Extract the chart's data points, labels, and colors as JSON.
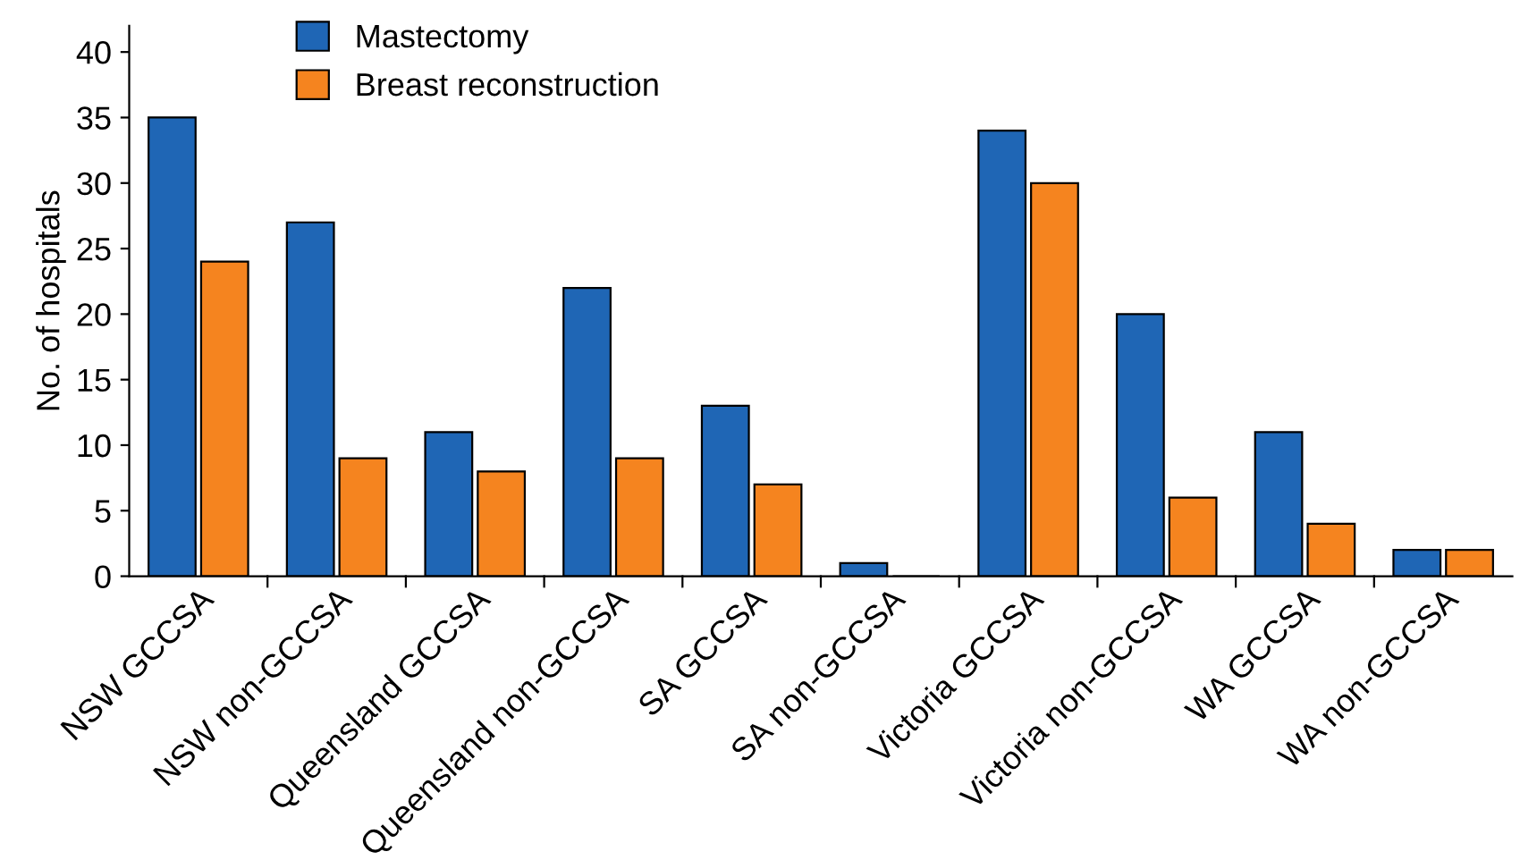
{
  "chart_data": {
    "type": "bar",
    "ylabel": "No. of hospitals",
    "categories": [
      "NSW GCCSA",
      "NSW non-GCCSA",
      "Queensland GCCSA",
      "Queensland non-GCCSA",
      "SA GCCSA",
      "SA non-GCCSA",
      "Victoria GCCSA",
      "Victoria non-GCCSA",
      "WA GCCSA",
      "WA non-GCCSA"
    ],
    "series": [
      {
        "name": "Mastectomy",
        "color": "#1f66b5",
        "values": [
          35,
          27,
          11,
          22,
          13,
          1,
          34,
          20,
          11,
          2
        ]
      },
      {
        "name": "Breast reconstruction",
        "color": "#f5841f",
        "values": [
          24,
          9,
          8,
          9,
          7,
          0,
          30,
          6,
          4,
          2
        ]
      }
    ],
    "ylim": [
      0,
      42
    ],
    "yticks": [
      0,
      5,
      10,
      15,
      20,
      25,
      30,
      35,
      40
    ],
    "grid": false,
    "legend": "top left"
  }
}
